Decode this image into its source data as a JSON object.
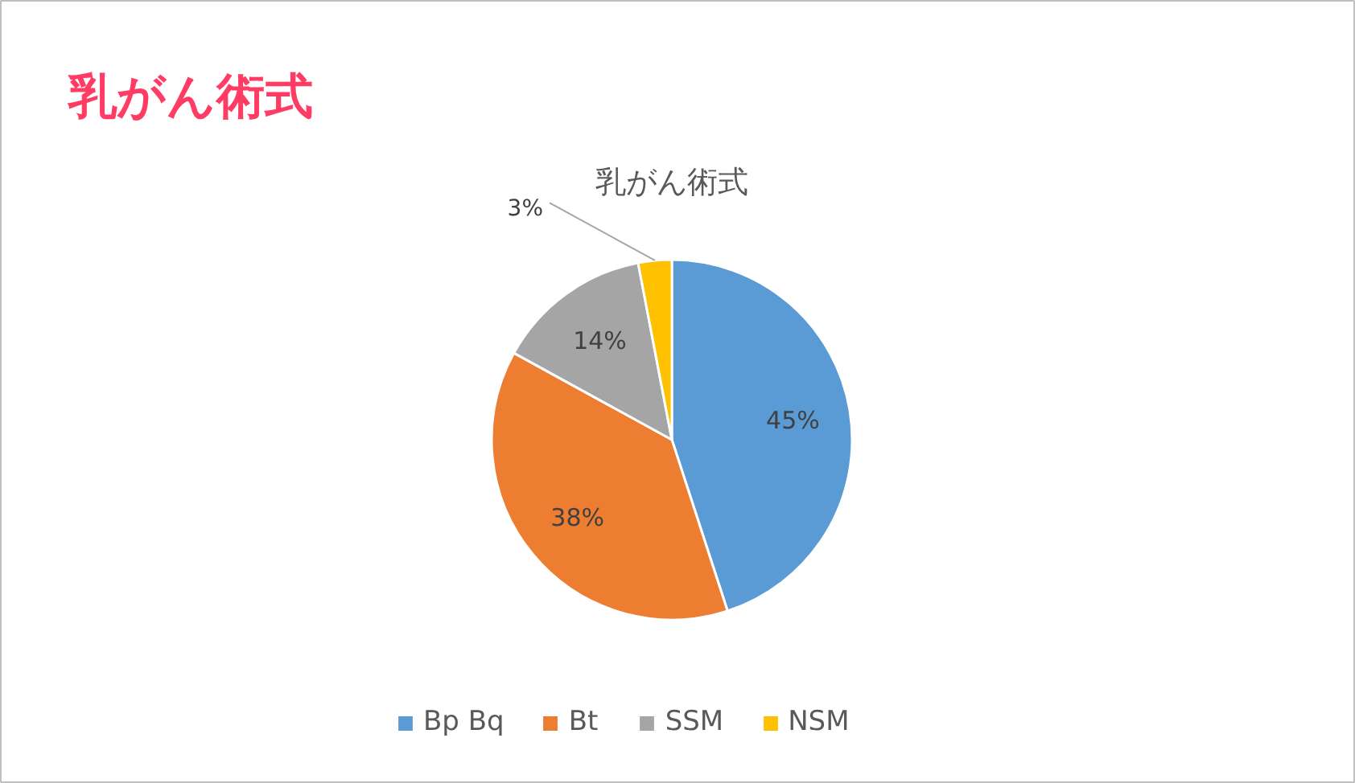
{
  "chart_data": {
    "type": "pie",
    "title": "乳がん術式",
    "subtitle": "乳がん術式",
    "categories": [
      "Bp Bq",
      "Bt",
      "SSM",
      "NSM"
    ],
    "values": [
      45,
      38,
      14,
      3
    ],
    "colors": [
      "#5b9bd5",
      "#ed7d31",
      "#a5a5a5",
      "#ffc000"
    ],
    "value_labels": [
      "45%",
      "38%",
      "14%",
      "3%"
    ],
    "legend": "bottom"
  }
}
